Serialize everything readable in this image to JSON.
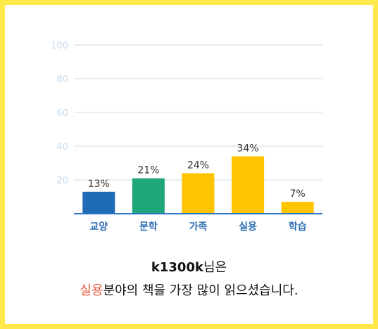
{
  "colors": {
    "frame": "#ffe84a",
    "axis": "#2f75c9",
    "grid": "#c9dced",
    "tick_label": "#c6dbec",
    "category_label": "#2f6db5",
    "value_label": "#333333",
    "highlight": "#e8553f"
  },
  "chart_data": {
    "type": "bar",
    "categories": [
      "교양",
      "문학",
      "가족",
      "실용",
      "학습"
    ],
    "values": [
      13,
      21,
      24,
      34,
      7
    ],
    "value_labels": [
      "13%",
      "21%",
      "24%",
      "34%",
      "7%"
    ],
    "bar_colors": [
      "#1f6bb5",
      "#1fa67a",
      "#ffc400",
      "#ffc400",
      "#ffc400"
    ],
    "yticks": [
      20,
      40,
      60,
      80,
      100
    ],
    "ylim": [
      0,
      100
    ],
    "grid": true,
    "title": "",
    "xlabel": "",
    "ylabel": ""
  },
  "summary": {
    "user": "k1300k",
    "line1_suffix": "님은",
    "category": "실용",
    "line2_suffix": "분야의 책을 가장 많이 읽으셨습니다."
  }
}
